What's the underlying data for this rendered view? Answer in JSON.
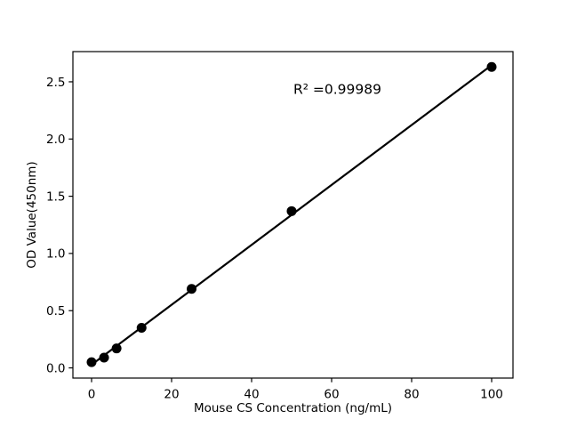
{
  "figure": {
    "background": "#ffffff",
    "foreground": "#000000"
  },
  "chart_data": {
    "type": "scatter",
    "title": "",
    "xlabel": "Mouse CS Concentration (ng/mL)",
    "ylabel": "OD Value(450nm)",
    "annotation": {
      "text": "R² =0.99989",
      "r_squared": 0.99989
    },
    "xlim": [
      -4.667,
      105.333
    ],
    "ylim": [
      -0.089,
      2.764
    ],
    "grid": false,
    "legend": "none",
    "x_ticks": [
      {
        "value": 0,
        "label": "0"
      },
      {
        "value": 20,
        "label": "20"
      },
      {
        "value": 40,
        "label": "40"
      },
      {
        "value": 60,
        "label": "60"
      },
      {
        "value": 80,
        "label": "80"
      },
      {
        "value": 100,
        "label": "100"
      }
    ],
    "y_ticks": [
      {
        "value": 0,
        "label": "0.0"
      },
      {
        "value": 0.5,
        "label": "0.5"
      },
      {
        "value": 1,
        "label": "1.0"
      },
      {
        "value": 1.5,
        "label": "1.5"
      },
      {
        "value": 2,
        "label": "2.0"
      },
      {
        "value": 2.5,
        "label": "2.5"
      }
    ],
    "series": [
      {
        "name": "standard-curve-points",
        "marker": "circle",
        "color": "#000000",
        "points": [
          {
            "x": 0,
            "y": 0.05
          },
          {
            "x": 3.125,
            "y": 0.09
          },
          {
            "x": 6.25,
            "y": 0.17
          },
          {
            "x": 12.5,
            "y": 0.35
          },
          {
            "x": 25,
            "y": 0.69
          },
          {
            "x": 50,
            "y": 1.37
          },
          {
            "x": 100,
            "y": 2.63
          }
        ]
      }
    ],
    "trendline": {
      "type": "linear-fit",
      "x_range": [
        0,
        100
      ],
      "color": "#000000"
    }
  }
}
